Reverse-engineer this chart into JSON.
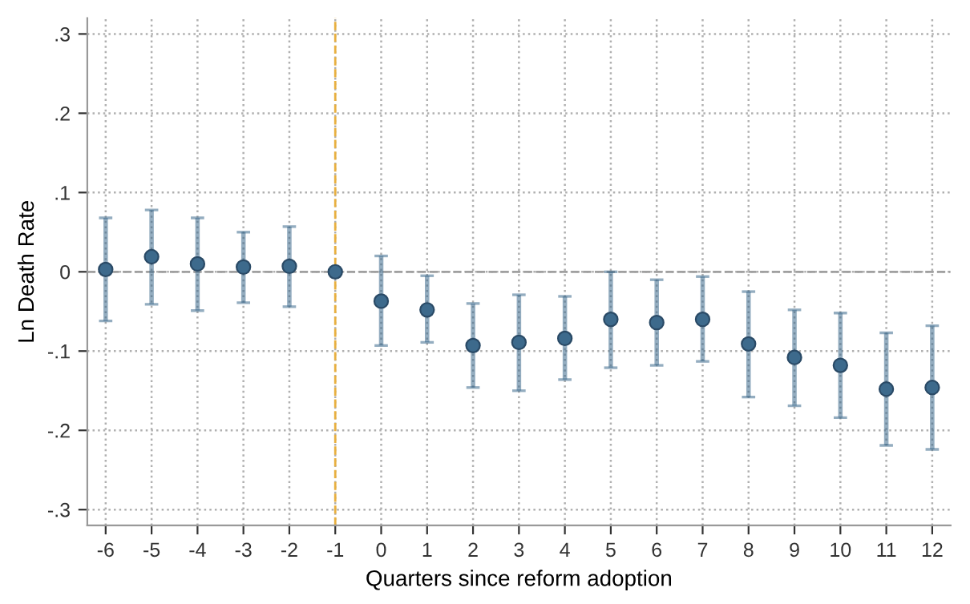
{
  "chart_data": {
    "type": "scatter",
    "xlabel": "Quarters since reform adoption",
    "ylabel": "Ln Death Rate",
    "categories": [
      "-6",
      "-5",
      "-4",
      "-3",
      "-2",
      "-1",
      "0",
      "1",
      "2",
      "3",
      "4",
      "5",
      "6",
      "7",
      "8",
      "9",
      "10",
      "11",
      "12"
    ],
    "series": [
      {
        "color": "#3d6a8c",
        "values": [
          0.003,
          0.019,
          0.01,
          0.006,
          0.007,
          0,
          -0.037,
          -0.048,
          -0.093,
          -0.089,
          -0.084,
          -0.06,
          -0.064,
          -0.06,
          -0.091,
          -0.108,
          -0.118,
          -0.148,
          -0.146
        ],
        "errors": [
          [
            -0.062,
            0.068
          ],
          [
            -0.041,
            0.078
          ],
          [
            -0.049,
            0.068
          ],
          [
            -0.039,
            0.05
          ],
          [
            -0.044,
            0.057
          ],
          null,
          [
            -0.093,
            0.02
          ],
          [
            -0.089,
            -0.005
          ],
          [
            -0.146,
            -0.04
          ],
          [
            -0.15,
            -0.029
          ],
          [
            -0.136,
            -0.031
          ],
          [
            -0.121,
            0
          ],
          [
            -0.118,
            -0.01
          ],
          [
            -0.113,
            -0.006
          ],
          [
            -0.158,
            -0.025
          ],
          [
            -0.169,
            -0.048
          ],
          [
            -0.184,
            -0.052
          ],
          [
            -0.219,
            -0.077
          ],
          [
            -0.224,
            -0.068
          ]
        ]
      }
    ],
    "ylim": [
      -0.32,
      0.32
    ],
    "yticks": [
      {
        "value": -0.3,
        "label": "-.3"
      },
      {
        "value": -0.2,
        "label": "-.2"
      },
      {
        "value": -0.1,
        "label": "-.1"
      },
      0,
      {
        "value": 0.1,
        "label": ".1"
      },
      {
        "value": 0.2,
        "label": ".2"
      },
      {
        "value": 0.3,
        "label": ".3"
      }
    ],
    "ref_lines": [
      {
        "axis": "y",
        "value": 0,
        "color": "#a0a0a0",
        "line_style": "dashed"
      },
      {
        "axis": "x",
        "value": "-1",
        "color": "#e8b040",
        "line_style": "dashed"
      }
    ],
    "grid": true,
    "marker": "circle",
    "legend": false
  }
}
